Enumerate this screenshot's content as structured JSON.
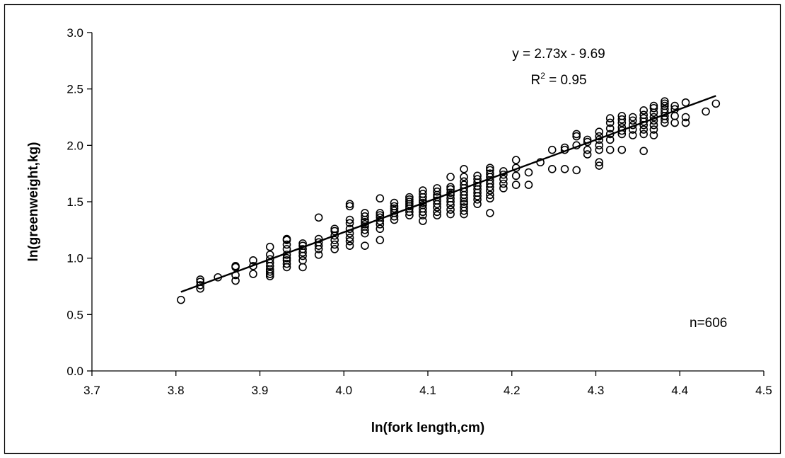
{
  "chart_data": {
    "type": "scatter",
    "xlabel": "ln(fork length,cm)",
    "ylabel": "ln(greenweight,kg)",
    "xlim": [
      3.7,
      4.5
    ],
    "ylim": [
      0.0,
      3.0
    ],
    "x_ticks": [
      3.7,
      3.8,
      3.9,
      4.0,
      4.1,
      4.2,
      4.3,
      4.4,
      4.5
    ],
    "y_ticks": [
      0.0,
      0.5,
      1.0,
      1.5,
      2.0,
      2.5,
      3.0
    ],
    "x_tick_labels": [
      "3.7",
      "3.8",
      "3.9",
      "4.0",
      "4.1",
      "4.2",
      "4.3",
      "4.4",
      "4.5"
    ],
    "y_tick_labels": [
      "0.0",
      "0.5",
      "1.0",
      "1.5",
      "2.0",
      "2.5",
      "3.0"
    ],
    "grid": false,
    "legend": "none",
    "marker": "open-circle",
    "series": [
      {
        "points": [
          [
            3.806,
            0.63
          ],
          [
            3.829,
            0.73
          ],
          [
            3.829,
            0.76
          ],
          [
            3.829,
            0.79
          ],
          [
            3.829,
            0.81
          ],
          [
            3.85,
            0.83
          ],
          [
            3.871,
            0.8
          ],
          [
            3.871,
            0.85
          ],
          [
            3.871,
            0.92
          ],
          [
            3.871,
            0.93
          ],
          [
            3.892,
            0.86
          ],
          [
            3.892,
            0.93
          ],
          [
            3.892,
            0.98
          ],
          [
            3.912,
            0.84
          ],
          [
            3.912,
            0.86
          ],
          [
            3.912,
            0.88
          ],
          [
            3.912,
            0.9
          ],
          [
            3.912,
            0.93
          ],
          [
            3.912,
            0.96
          ],
          [
            3.912,
            0.99
          ],
          [
            3.912,
            1.03
          ],
          [
            3.912,
            1.1
          ],
          [
            3.932,
            0.92
          ],
          [
            3.932,
            0.95
          ],
          [
            3.932,
            0.98
          ],
          [
            3.932,
            1.0
          ],
          [
            3.932,
            1.03
          ],
          [
            3.932,
            1.08
          ],
          [
            3.932,
            1.12
          ],
          [
            3.932,
            1.16
          ],
          [
            3.932,
            1.17
          ],
          [
            3.951,
            0.92
          ],
          [
            3.951,
            0.98
          ],
          [
            3.951,
            1.02
          ],
          [
            3.951,
            1.05
          ],
          [
            3.951,
            1.08
          ],
          [
            3.951,
            1.11
          ],
          [
            3.951,
            1.13
          ],
          [
            3.97,
            1.03
          ],
          [
            3.97,
            1.08
          ],
          [
            3.97,
            1.11
          ],
          [
            3.97,
            1.14
          ],
          [
            3.97,
            1.17
          ],
          [
            3.97,
            1.36
          ],
          [
            3.989,
            1.08
          ],
          [
            3.989,
            1.12
          ],
          [
            3.989,
            1.16
          ],
          [
            3.989,
            1.2
          ],
          [
            3.989,
            1.24
          ],
          [
            3.989,
            1.26
          ],
          [
            4.007,
            1.11
          ],
          [
            4.007,
            1.15
          ],
          [
            4.007,
            1.18
          ],
          [
            4.007,
            1.22
          ],
          [
            4.007,
            1.26
          ],
          [
            4.007,
            1.31
          ],
          [
            4.007,
            1.34
          ],
          [
            4.007,
            1.46
          ],
          [
            4.007,
            1.48
          ],
          [
            4.025,
            1.11
          ],
          [
            4.025,
            1.22
          ],
          [
            4.025,
            1.25
          ],
          [
            4.025,
            1.28
          ],
          [
            4.025,
            1.3
          ],
          [
            4.025,
            1.32
          ],
          [
            4.025,
            1.34
          ],
          [
            4.025,
            1.37
          ],
          [
            4.025,
            1.4
          ],
          [
            4.043,
            1.16
          ],
          [
            4.043,
            1.26
          ],
          [
            4.043,
            1.3
          ],
          [
            4.043,
            1.33
          ],
          [
            4.043,
            1.36
          ],
          [
            4.043,
            1.38
          ],
          [
            4.043,
            1.4
          ],
          [
            4.043,
            1.53
          ],
          [
            4.06,
            1.34
          ],
          [
            4.06,
            1.37
          ],
          [
            4.06,
            1.4
          ],
          [
            4.06,
            1.42
          ],
          [
            4.06,
            1.44
          ],
          [
            4.06,
            1.46
          ],
          [
            4.06,
            1.49
          ],
          [
            4.078,
            1.38
          ],
          [
            4.078,
            1.41
          ],
          [
            4.078,
            1.44
          ],
          [
            4.078,
            1.46
          ],
          [
            4.078,
            1.48
          ],
          [
            4.078,
            1.5
          ],
          [
            4.078,
            1.52
          ],
          [
            4.078,
            1.54
          ],
          [
            4.094,
            1.33
          ],
          [
            4.094,
            1.38
          ],
          [
            4.094,
            1.41
          ],
          [
            4.094,
            1.44
          ],
          [
            4.094,
            1.47
          ],
          [
            4.094,
            1.49
          ],
          [
            4.094,
            1.51
          ],
          [
            4.094,
            1.54
          ],
          [
            4.094,
            1.57
          ],
          [
            4.094,
            1.6
          ],
          [
            4.111,
            1.38
          ],
          [
            4.111,
            1.41
          ],
          [
            4.111,
            1.45
          ],
          [
            4.111,
            1.48
          ],
          [
            4.111,
            1.51
          ],
          [
            4.111,
            1.54
          ],
          [
            4.111,
            1.56
          ],
          [
            4.111,
            1.59
          ],
          [
            4.111,
            1.62
          ],
          [
            4.127,
            1.39
          ],
          [
            4.127,
            1.43
          ],
          [
            4.127,
            1.47
          ],
          [
            4.127,
            1.5
          ],
          [
            4.127,
            1.53
          ],
          [
            4.127,
            1.56
          ],
          [
            4.127,
            1.58
          ],
          [
            4.127,
            1.61
          ],
          [
            4.127,
            1.63
          ],
          [
            4.127,
            1.72
          ],
          [
            4.143,
            1.39
          ],
          [
            4.143,
            1.42
          ],
          [
            4.143,
            1.45
          ],
          [
            4.143,
            1.48
          ],
          [
            4.143,
            1.5
          ],
          [
            4.143,
            1.53
          ],
          [
            4.143,
            1.56
          ],
          [
            4.143,
            1.59
          ],
          [
            4.143,
            1.62
          ],
          [
            4.143,
            1.65
          ],
          [
            4.143,
            1.68
          ],
          [
            4.143,
            1.72
          ],
          [
            4.143,
            1.79
          ],
          [
            4.159,
            1.48
          ],
          [
            4.159,
            1.52
          ],
          [
            4.159,
            1.55
          ],
          [
            4.159,
            1.58
          ],
          [
            4.159,
            1.61
          ],
          [
            4.159,
            1.64
          ],
          [
            4.159,
            1.67
          ],
          [
            4.159,
            1.7
          ],
          [
            4.159,
            1.73
          ],
          [
            4.174,
            1.4
          ],
          [
            4.174,
            1.53
          ],
          [
            4.174,
            1.56
          ],
          [
            4.174,
            1.6
          ],
          [
            4.174,
            1.63
          ],
          [
            4.174,
            1.66
          ],
          [
            4.174,
            1.69
          ],
          [
            4.174,
            1.72
          ],
          [
            4.174,
            1.75
          ],
          [
            4.174,
            1.78
          ],
          [
            4.174,
            1.8
          ],
          [
            4.19,
            1.62
          ],
          [
            4.19,
            1.66
          ],
          [
            4.19,
            1.7
          ],
          [
            4.19,
            1.74
          ],
          [
            4.19,
            1.77
          ],
          [
            4.205,
            1.65
          ],
          [
            4.205,
            1.73
          ],
          [
            4.205,
            1.8
          ],
          [
            4.205,
            1.87
          ],
          [
            4.22,
            1.65
          ],
          [
            4.22,
            1.76
          ],
          [
            4.234,
            1.85
          ],
          [
            4.248,
            1.79
          ],
          [
            4.248,
            1.96
          ],
          [
            4.263,
            1.79
          ],
          [
            4.263,
            1.96
          ],
          [
            4.263,
            1.98
          ],
          [
            4.277,
            1.78
          ],
          [
            4.277,
            2.0
          ],
          [
            4.277,
            2.08
          ],
          [
            4.277,
            2.1
          ],
          [
            4.29,
            1.92
          ],
          [
            4.29,
            1.96
          ],
          [
            4.29,
            2.03
          ],
          [
            4.29,
            2.05
          ],
          [
            4.304,
            1.82
          ],
          [
            4.304,
            1.85
          ],
          [
            4.304,
            1.96
          ],
          [
            4.304,
            2.0
          ],
          [
            4.304,
            2.05
          ],
          [
            4.304,
            2.08
          ],
          [
            4.304,
            2.12
          ],
          [
            4.317,
            1.96
          ],
          [
            4.317,
            2.05
          ],
          [
            4.317,
            2.1
          ],
          [
            4.317,
            2.15
          ],
          [
            4.317,
            2.2
          ],
          [
            4.317,
            2.24
          ],
          [
            4.331,
            1.96
          ],
          [
            4.331,
            2.1
          ],
          [
            4.331,
            2.13
          ],
          [
            4.331,
            2.16
          ],
          [
            4.331,
            2.2
          ],
          [
            4.331,
            2.23
          ],
          [
            4.331,
            2.26
          ],
          [
            4.344,
            2.09
          ],
          [
            4.344,
            2.14
          ],
          [
            4.344,
            2.18
          ],
          [
            4.344,
            2.22
          ],
          [
            4.344,
            2.25
          ],
          [
            4.357,
            1.95
          ],
          [
            4.357,
            2.1
          ],
          [
            4.357,
            2.14
          ],
          [
            4.357,
            2.18
          ],
          [
            4.357,
            2.21
          ],
          [
            4.357,
            2.24
          ],
          [
            4.357,
            2.27
          ],
          [
            4.357,
            2.31
          ],
          [
            4.369,
            2.09
          ],
          [
            4.369,
            2.14
          ],
          [
            4.369,
            2.18
          ],
          [
            4.369,
            2.22
          ],
          [
            4.369,
            2.25
          ],
          [
            4.369,
            2.29
          ],
          [
            4.369,
            2.33
          ],
          [
            4.369,
            2.35
          ],
          [
            4.382,
            2.2
          ],
          [
            4.382,
            2.23
          ],
          [
            4.382,
            2.26
          ],
          [
            4.382,
            2.29
          ],
          [
            4.382,
            2.32
          ],
          [
            4.382,
            2.35
          ],
          [
            4.382,
            2.37
          ],
          [
            4.382,
            2.39
          ],
          [
            4.394,
            2.2
          ],
          [
            4.394,
            2.26
          ],
          [
            4.394,
            2.32
          ],
          [
            4.394,
            2.35
          ],
          [
            4.407,
            2.2
          ],
          [
            4.407,
            2.25
          ],
          [
            4.407,
            2.38
          ],
          [
            4.431,
            2.3
          ],
          [
            4.443,
            2.37
          ]
        ]
      }
    ],
    "trendline": {
      "type": "linear",
      "slope": 2.73,
      "intercept": -9.69,
      "x_range": [
        3.806,
        4.443
      ]
    },
    "annotations": {
      "equation": "y = 2.73x - 9.69",
      "r2_prefix": "R",
      "r2_sup": "2",
      "r2_suffix": " = 0.95",
      "n_label": "n=606"
    }
  }
}
